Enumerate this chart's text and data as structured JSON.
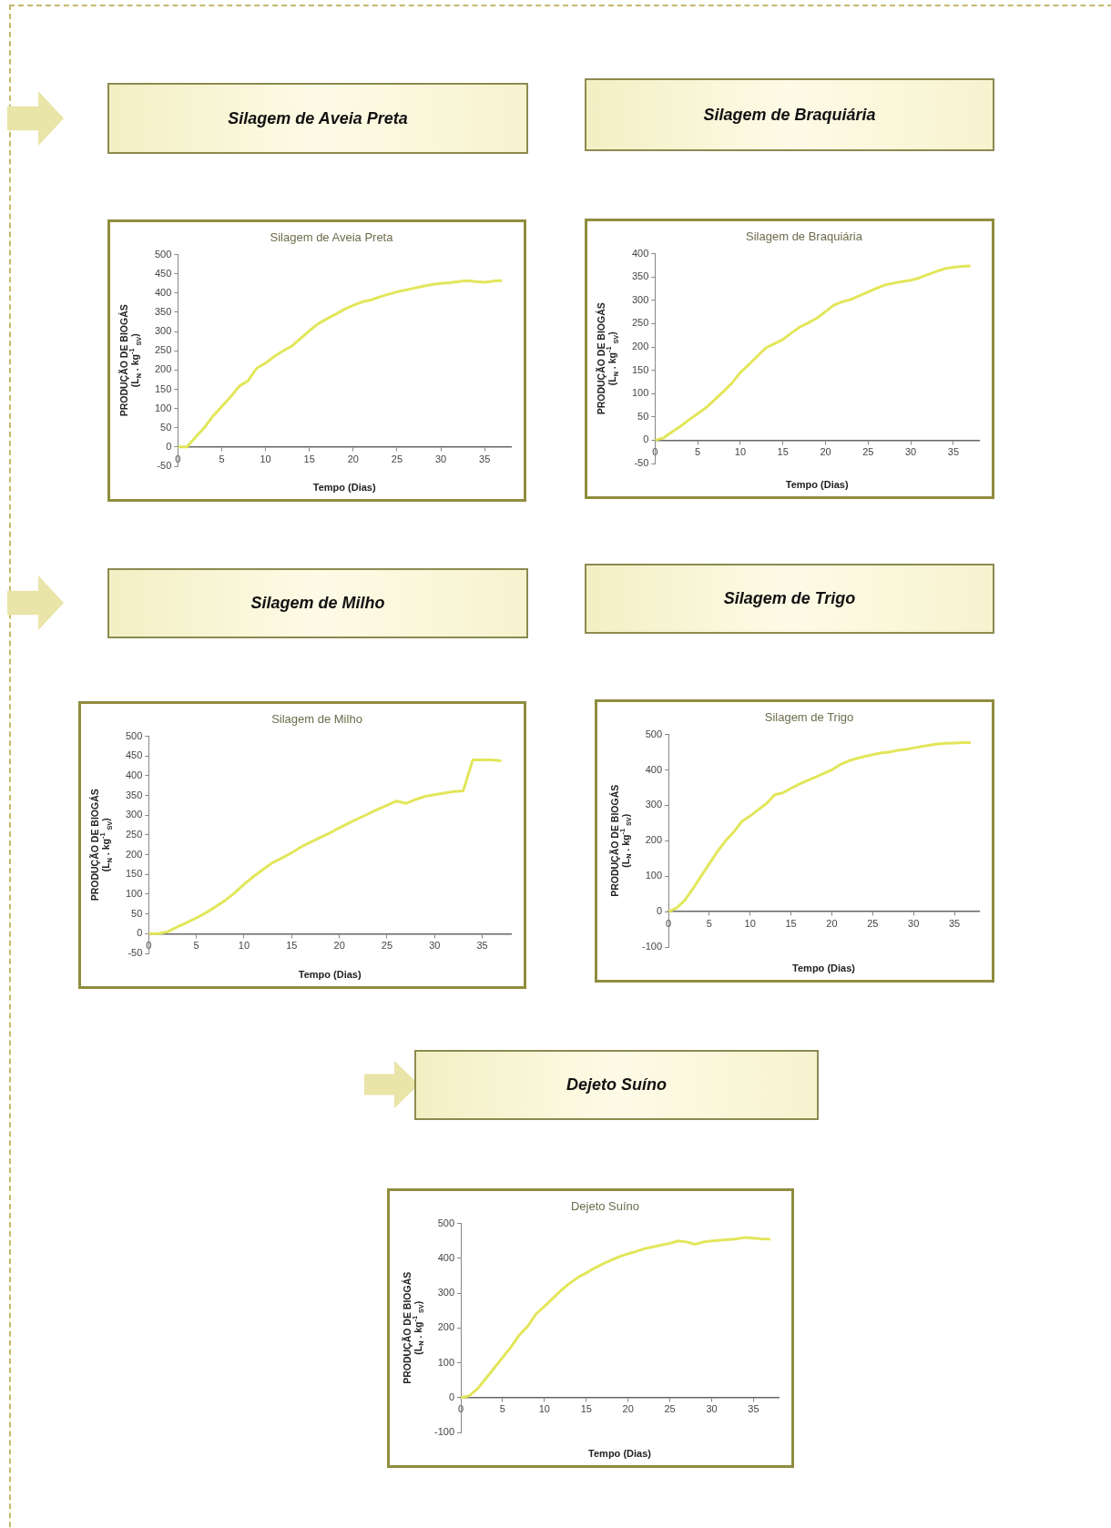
{
  "chart_data": [
    {
      "type": "line",
      "title": "Silagem de Aveia Preta",
      "subtitle": "Silagem de Aveia Preta",
      "xlabel": "Tempo (Dias)",
      "ylabel": "PRODUÇÃO DE BIOGÁS\n(L$_{N}$ . kg$^{-1}$ $_{SV}$)",
      "x": [
        0,
        1,
        2,
        3,
        4,
        5,
        6,
        7,
        8,
        9,
        10,
        11,
        12,
        13,
        14,
        15,
        16,
        17,
        18,
        19,
        20,
        21,
        22,
        23,
        24,
        25,
        26,
        27,
        28,
        29,
        30,
        31,
        32,
        33,
        34,
        35,
        36,
        37
      ],
      "series": [
        {
          "color": "#e2e65a",
          "values": [
            0,
            0,
            25,
            50,
            80,
            105,
            130,
            158,
            172,
            205,
            218,
            235,
            250,
            262,
            282,
            302,
            320,
            333,
            345,
            358,
            368,
            377,
            382,
            390,
            397,
            403,
            408,
            413,
            418,
            422,
            425,
            427,
            430,
            432,
            430,
            428,
            431,
            433
          ]
        }
      ],
      "xlim": [
        0,
        38
      ],
      "xticks": [
        0,
        5,
        10,
        15,
        20,
        25,
        30,
        35
      ],
      "ylim": [
        -50,
        500
      ],
      "yticks": [
        -50,
        0,
        50,
        100,
        150,
        200,
        250,
        300,
        350,
        400,
        450,
        500
      ],
      "marker": "none"
    },
    {
      "type": "line",
      "title": "Silagem de Braquiária",
      "subtitle": "Silagem de Braquiária",
      "xlabel": "Tempo (Dias)",
      "ylabel": "PRODUÇÃO DE BIOGÁS\n(L$_{N}$ . kg$^{-1}$ $_{SV}$)",
      "x": [
        0,
        1,
        2,
        3,
        4,
        5,
        6,
        7,
        8,
        9,
        10,
        11,
        12,
        13,
        14,
        15,
        16,
        17,
        18,
        19,
        20,
        21,
        22,
        23,
        24,
        25,
        26,
        27,
        28,
        29,
        30,
        31,
        32,
        33,
        34,
        35,
        36,
        37
      ],
      "series": [
        {
          "color": "#e2e65a",
          "values": [
            0,
            5,
            18,
            30,
            44,
            57,
            70,
            87,
            104,
            122,
            145,
            162,
            180,
            198,
            207,
            216,
            230,
            243,
            252,
            262,
            276,
            290,
            297,
            302,
            310,
            318,
            326,
            333,
            337,
            340,
            343,
            348,
            355,
            362,
            368,
            371,
            373,
            374
          ]
        }
      ],
      "xlim": [
        0,
        38
      ],
      "xticks": [
        0,
        5,
        10,
        15,
        20,
        25,
        30,
        35
      ],
      "ylim": [
        -50,
        400
      ],
      "yticks": [
        -50,
        0,
        50,
        100,
        150,
        200,
        250,
        300,
        350,
        400
      ],
      "marker": "none"
    },
    {
      "type": "line",
      "title": "Silagem de Milho",
      "subtitle": "Silagem de Milho",
      "xlabel": "Tempo (Dias)",
      "ylabel": "PRODUÇÃO DE BIOGÁS\n(L$_{N}$ . kg$^{-1}$ $_{SV}$)",
      "x": [
        0,
        1,
        2,
        3,
        4,
        5,
        6,
        7,
        8,
        9,
        10,
        11,
        12,
        13,
        14,
        15,
        16,
        17,
        18,
        19,
        20,
        21,
        22,
        23,
        24,
        25,
        26,
        27,
        28,
        29,
        30,
        31,
        32,
        33,
        34,
        35,
        36,
        37
      ],
      "series": [
        {
          "color": "#e2e65a",
          "values": [
            0,
            0,
            5,
            17,
            28,
            40,
            53,
            68,
            84,
            103,
            125,
            145,
            163,
            180,
            192,
            205,
            220,
            232,
            244,
            255,
            268,
            280,
            292,
            303,
            315,
            325,
            336,
            330,
            340,
            348,
            352,
            356,
            360,
            362,
            440,
            440,
            440,
            438
          ]
        }
      ],
      "xlim": [
        0,
        38
      ],
      "xticks": [
        0,
        5,
        10,
        15,
        20,
        25,
        30,
        35
      ],
      "ylim": [
        -50,
        500
      ],
      "yticks": [
        -50,
        0,
        50,
        100,
        150,
        200,
        250,
        300,
        350,
        400,
        450,
        500
      ],
      "marker": "none"
    },
    {
      "type": "line",
      "title": "Silagem de Trigo",
      "subtitle": "Silagem de Trigo",
      "xlabel": "Tempo (Dias)",
      "ylabel": "PRODUÇÃO DE BIOGÁS\n(L$_{N}$ . kg$^{-1}$ $_{SV}$)",
      "x": [
        0,
        1,
        2,
        3,
        4,
        5,
        6,
        7,
        8,
        9,
        10,
        11,
        12,
        13,
        14,
        15,
        16,
        17,
        18,
        19,
        20,
        21,
        22,
        23,
        24,
        25,
        26,
        27,
        28,
        29,
        30,
        31,
        32,
        33,
        34,
        35,
        36,
        37
      ],
      "series": [
        {
          "color": "#e2e65a",
          "values": [
            0,
            10,
            32,
            65,
            100,
            135,
            170,
            200,
            225,
            255,
            270,
            288,
            305,
            330,
            335,
            348,
            360,
            370,
            380,
            390,
            400,
            415,
            425,
            432,
            438,
            443,
            448,
            450,
            455,
            458,
            462,
            466,
            470,
            473,
            475,
            476,
            477,
            477
          ]
        }
      ],
      "xlim": [
        0,
        38
      ],
      "xticks": [
        0,
        5,
        10,
        15,
        20,
        25,
        30,
        35
      ],
      "ylim": [
        -100,
        500
      ],
      "yticks": [
        -100,
        0,
        100,
        200,
        300,
        400,
        500
      ],
      "marker": "none"
    },
    {
      "type": "line",
      "title": "Dejeto Suíno",
      "subtitle": "Dejeto Suíno",
      "xlabel": "Tempo (Dias)",
      "ylabel": "PRODUÇÃO DE BIOGÁS\n(L$_{N}$ . kg$^{-1}$ $_{SV}$)",
      "x": [
        0,
        1,
        2,
        3,
        4,
        5,
        6,
        7,
        8,
        9,
        10,
        11,
        12,
        13,
        14,
        15,
        16,
        17,
        18,
        19,
        20,
        21,
        22,
        23,
        24,
        25,
        26,
        27,
        28,
        29,
        30,
        31,
        32,
        33,
        34,
        35,
        36,
        37
      ],
      "series": [
        {
          "color": "#e2e65a",
          "values": [
            0,
            5,
            25,
            55,
            85,
            115,
            145,
            180,
            205,
            240,
            262,
            285,
            308,
            328,
            345,
            358,
            372,
            384,
            395,
            405,
            413,
            420,
            428,
            433,
            438,
            443,
            450,
            447,
            440,
            447,
            450,
            452,
            454,
            456,
            460,
            458,
            456,
            455
          ]
        }
      ],
      "xlim": [
        0,
        38
      ],
      "xticks": [
        0,
        5,
        10,
        15,
        20,
        25,
        30,
        35
      ],
      "ylim": [
        -100,
        500
      ],
      "yticks": [
        -100,
        0,
        100,
        200,
        300,
        400,
        500
      ],
      "marker": "none"
    }
  ]
}
